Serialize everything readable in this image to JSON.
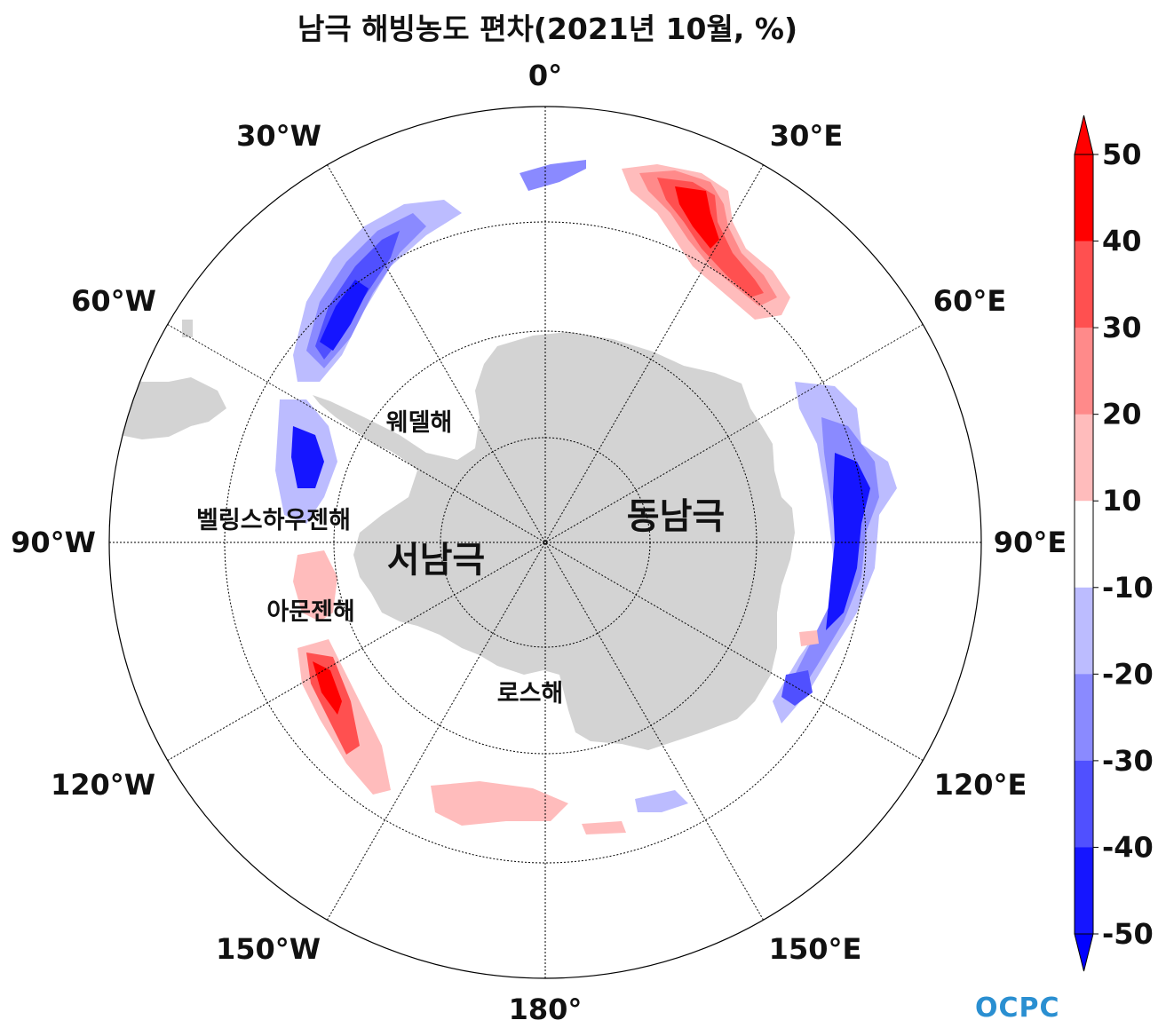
{
  "title": "남극 해빙농도 편차(2021년 10월, %)",
  "longitude_labels": {
    "0": "0°",
    "30E": "30°E",
    "60E": "60°E",
    "90E": "90°E",
    "120E": "120°E",
    "150E": "150°E",
    "180": "180°",
    "150W": "150°W",
    "120W": "120°W",
    "90W": "90°W",
    "60W": "60°W",
    "30W": "30°W"
  },
  "regions": {
    "weddell": "웨델해",
    "bellingshausen": "벨링스하우젠해",
    "amundsen": "아문젠해",
    "ross": "로스해",
    "west_antarctica": "서남극",
    "east_antarctica": "동남극"
  },
  "colorbar": {
    "ticks": [
      "50",
      "40",
      "30",
      "20",
      "10",
      "-10",
      "-20",
      "-30",
      "-40",
      "-50"
    ],
    "colors": [
      "#ff0000",
      "#ff5050",
      "#ff8a8a",
      "#ffbcbc",
      "#ffffff",
      "#bcbcff",
      "#8a8aff",
      "#5050ff",
      "#1515ff"
    ],
    "over_color": "#ff0000",
    "under_color": "#0000ff"
  },
  "land_color": "#d3d3d3",
  "logo": "OCPC"
}
